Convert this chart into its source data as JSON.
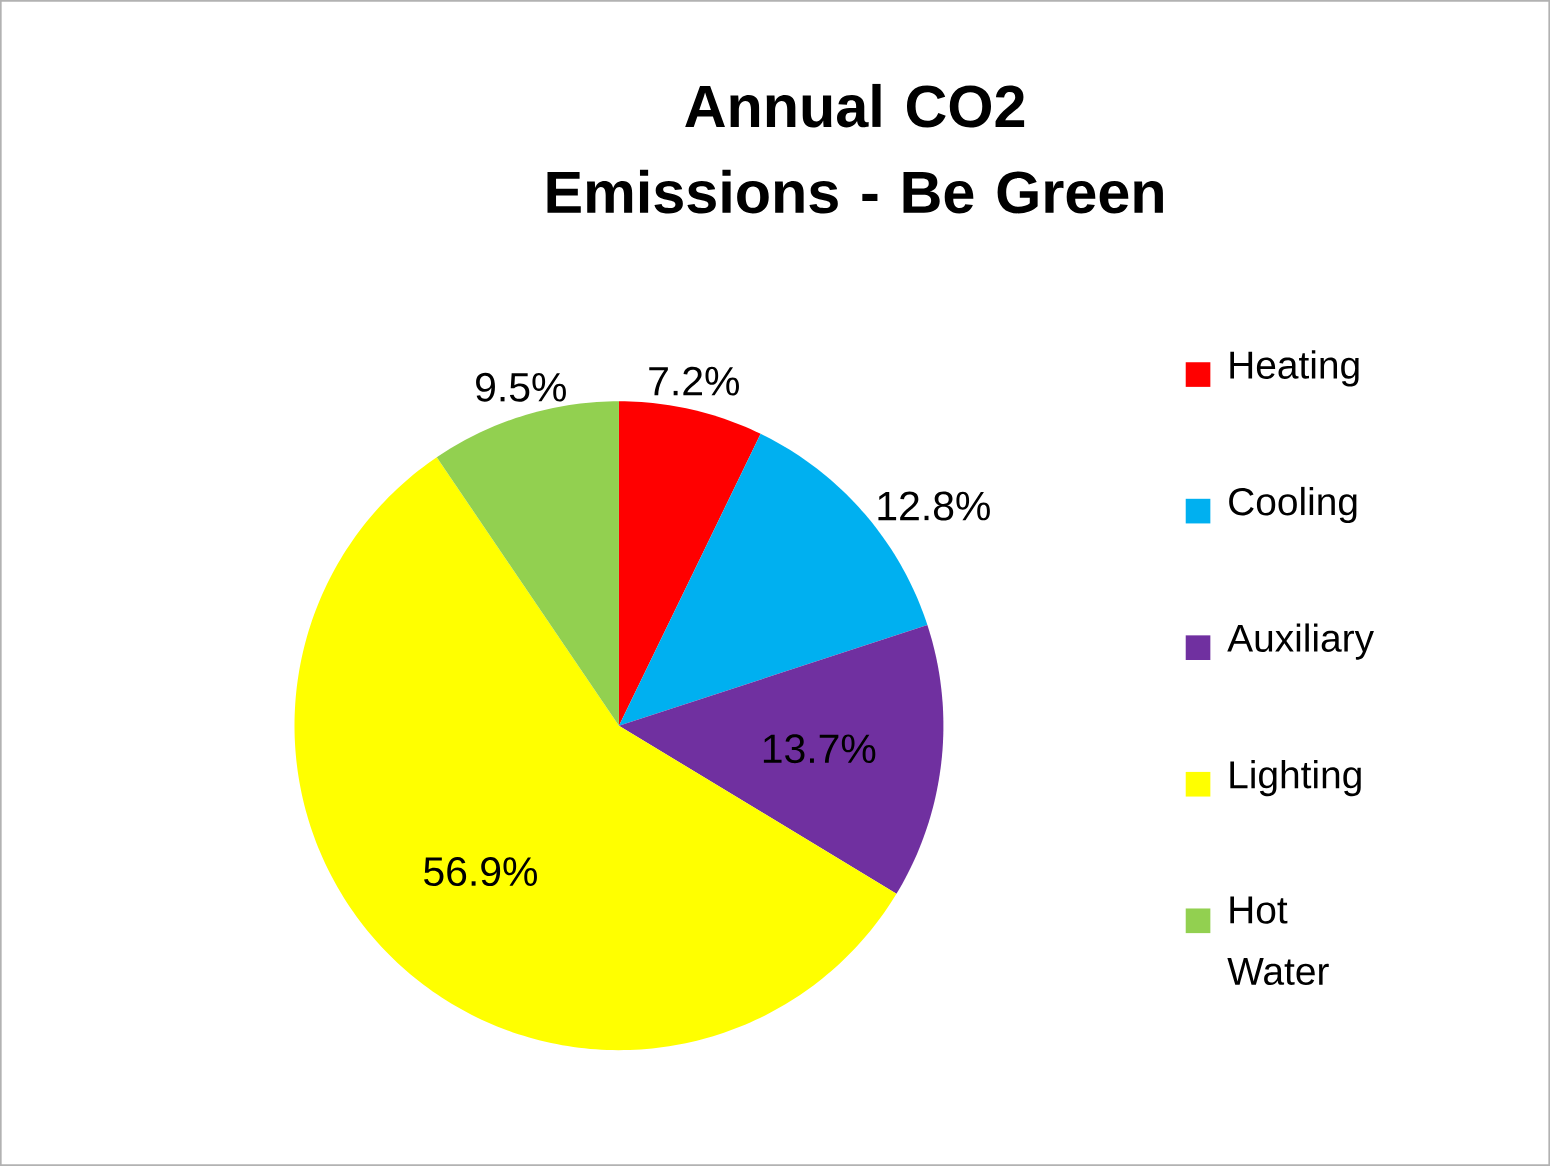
{
  "chart_data": {
    "type": "pie",
    "title": "Annual CO2 Emissions - Be Green",
    "categories": [
      "Heating",
      "Cooling",
      "Auxiliary",
      "Lighting",
      "Hot Water"
    ],
    "values": [
      7.2,
      12.8,
      13.7,
      56.9,
      9.5
    ],
    "colors": [
      "#ff0000",
      "#00b0f0",
      "#7030a0",
      "#ffff00",
      "#92d050"
    ],
    "value_labels": [
      "7.2%",
      "12.8%",
      "13.7%",
      "56.9%",
      "9.5%"
    ],
    "legend": "right"
  }
}
